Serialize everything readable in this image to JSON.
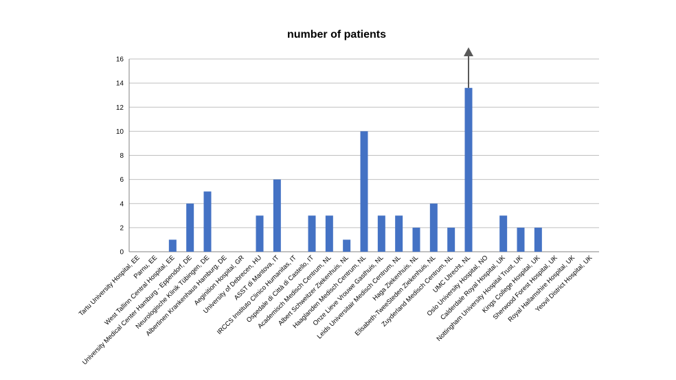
{
  "chart_data": {
    "type": "bar",
    "title": "number of patients",
    "xlabel": "",
    "ylabel": "",
    "ylim": [
      0,
      16
    ],
    "yticks": [
      0,
      2,
      4,
      6,
      8,
      10,
      12,
      14,
      16
    ],
    "grid": true,
    "legend": "none",
    "bar_color": "#4472c4",
    "categories": [
      "Tartu University Hospital, EE",
      "Parnu, EE",
      "West Tallinn Central Hospital, EE",
      "University Medical Center Hamburg - Eppendorf, DE",
      "Neurologische Klinik Tübingen, DE",
      "Albertinen Krankenhaus Hamburg, DE",
      "Aeginition Hospital, GR",
      "University of Debrecen, HU",
      "ASST di Mantova, IT",
      "IRCCS Instituto Clinico Humanitas, IT",
      "Ospedale di Città di Castello, IT",
      "Academisch Medisch Centrum, NL",
      "Albert Schweitzer Ziekenhuis, NL",
      "Haaglanden Medisch Centrum, NL",
      "Onze Lieve Vrouwe Gasthuis, NL",
      "Leids Universitair Medisch Centrum, NL",
      "Haga Ziekenhuis, NL",
      "Elisabeth-TweeSteden Ziekenhuis, NL",
      "Zuyderland Medisch Centrum, NL",
      "UMC Utrecht, NL",
      "Oslo University Hospital, NO",
      "Calderdale Royal Hospital, UK",
      "Nottingham University Hospital Trust, UK",
      "Kings College Hospital, UK",
      "Sherwood Forest Hospital, UK",
      "Royal Hallamshire Hospital, UK",
      "Yeovil District Hospital, UK"
    ],
    "values": [
      0,
      0,
      1,
      4,
      5,
      0,
      0,
      3,
      6,
      0,
      3,
      3,
      1,
      10,
      3,
      3,
      2,
      4,
      2,
      13.6,
      0,
      3,
      2,
      2,
      0,
      0,
      0
    ],
    "annotations": [
      {
        "type": "arrow-up",
        "category": "UMC Utrecht, NL",
        "color": "#595959"
      }
    ]
  }
}
